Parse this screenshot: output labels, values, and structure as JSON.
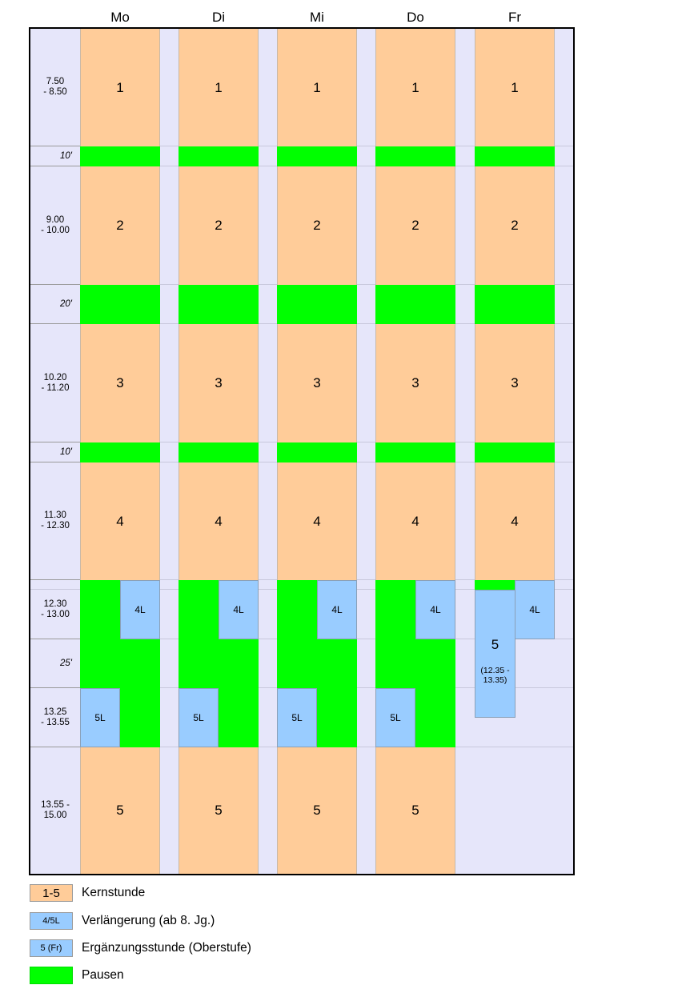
{
  "days": [
    "Mo",
    "Di",
    "Mi",
    "Do",
    "Fr"
  ],
  "times": {
    "p1": [
      "7.50",
      "- 8.50"
    ],
    "b1": "10'",
    "p2": [
      "9.00",
      "- 10.00"
    ],
    "b2": "20'",
    "p3": [
      "10.20",
      "- 11.20"
    ],
    "b3": "10'",
    "p4": [
      "11.30",
      "- 12.30"
    ],
    "l1": [
      "12.30",
      "- 13.00"
    ],
    "b4": "25'",
    "l2": [
      "13.25",
      "- 13.55"
    ],
    "p5": [
      "13.55 -",
      "15.00"
    ]
  },
  "lessons": {
    "p1": "1",
    "p2": "2",
    "p3": "3",
    "p4": "4",
    "p5": "5"
  },
  "extensions": {
    "l4": "4L",
    "l5": "5L"
  },
  "friday_extra": {
    "label": "5",
    "time": [
      "(12.35 -",
      "13.35)"
    ]
  },
  "legend": [
    {
      "swatch": "1-5",
      "text": "Kernstunde",
      "color": "#ffcc99"
    },
    {
      "swatch": "4/5L",
      "text": "Verlängerung (ab 8. Jg.)",
      "color": "#99ccff"
    },
    {
      "swatch": "5 (Fr)",
      "text": "Ergänzungsstunde (Oberstufe)",
      "color": "#99ccff"
    },
    {
      "swatch": "",
      "text": "Pausen",
      "color": "#00ff00"
    }
  ],
  "colors": {
    "core": "#ffcc99",
    "extension": "#99ccff",
    "pause": "#00ff00",
    "background": "#e6e6fa"
  }
}
